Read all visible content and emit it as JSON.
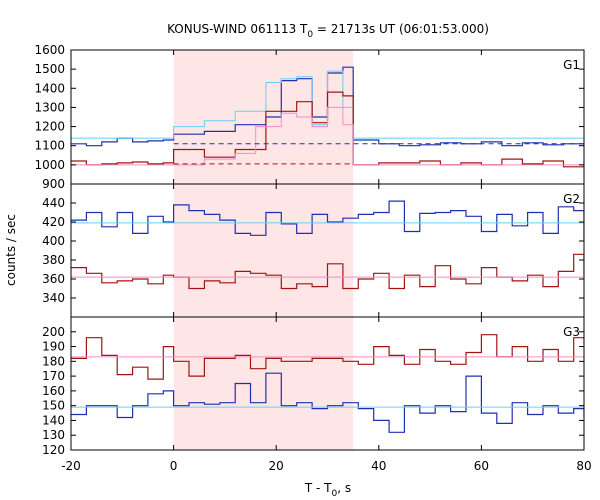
{
  "chart_data": {
    "type": "line",
    "title": "KONUS-WIND 061113 T",
    "title_sub": "0",
    "title_rest": " = 21713s UT (06:01:53.000)",
    "xlabel": "T - T",
    "xlabel_sub": "0",
    "xlabel_rest": ", s",
    "ylabel": "counts / sec",
    "xlim": [
      -20,
      80
    ],
    "xticks": [
      -20,
      0,
      20,
      40,
      60,
      80
    ],
    "shaded_region": {
      "x0": 0,
      "x1": 35,
      "color": "#ffe6e6"
    },
    "colors": {
      "dark_blue": "#1f2fb0",
      "dark_red": "#a01414",
      "cyan": "#66d0f0",
      "pink": "#f08cc8"
    },
    "panels": [
      {
        "name": "G1",
        "ylim": [
          900,
          1600
        ],
        "yticks": [
          900,
          1000,
          1100,
          1200,
          1300,
          1400,
          1500,
          1600
        ],
        "series": [
          {
            "color": "#1f2fb0",
            "width": 1.2,
            "style": "step",
            "x": [
              -20,
              -17,
              -14,
              -11,
              -8,
              -5,
              -2,
              0,
              6,
              12,
              18,
              21,
              24,
              27,
              30,
              33,
              35,
              40,
              44,
              48,
              52,
              56,
              60,
              64,
              68,
              72,
              76,
              80
            ],
            "y": [
              1110,
              1100,
              1120,
              1140,
              1120,
              1125,
              1130,
              1160,
              1175,
              1210,
              1250,
              1440,
              1450,
              1250,
              1480,
              1510,
              1130,
              1110,
              1100,
              1105,
              1115,
              1110,
              1120,
              1100,
              1115,
              1105,
              1110,
              1100
            ]
          },
          {
            "color": "#66d0f0",
            "width": 1.0,
            "style": "step",
            "x": [
              -20,
              0,
              6,
              12,
              18,
              21,
              24,
              27,
              30,
              33,
              35,
              80
            ],
            "y": [
              1140,
              1200,
              1230,
              1280,
              1430,
              1450,
              1460,
              1210,
              1490,
              1300,
              1140,
              1140
            ]
          },
          {
            "color": "#a01414",
            "width": 1.2,
            "style": "step",
            "x": [
              -20,
              -17,
              -14,
              -11,
              -8,
              -5,
              -2,
              0,
              6,
              12,
              18,
              21,
              24,
              27,
              30,
              33,
              35,
              40,
              44,
              48,
              52,
              56,
              60,
              64,
              68,
              72,
              76,
              80
            ],
            "y": [
              1020,
              1000,
              1005,
              1010,
              1015,
              1005,
              1010,
              1080,
              1040,
              1080,
              1280,
              1280,
              1330,
              1220,
              1380,
              1360,
              1000,
              1010,
              1010,
              1020,
              1000,
              1010,
              1000,
              1030,
              1005,
              1020,
              990,
              1020
            ]
          },
          {
            "color": "#f08cc8",
            "width": 1.0,
            "style": "step",
            "x": [
              -20,
              0,
              6,
              12,
              16,
              21,
              24,
              27,
              30,
              33,
              35,
              80
            ],
            "y": [
              1000,
              1000,
              1030,
              1060,
              1200,
              1270,
              1250,
              1200,
              1300,
              1210,
              1000,
              1000
            ]
          },
          {
            "color": "#1f2fb0",
            "width": 1.0,
            "style": "dashed",
            "x": [
              0,
              80
            ],
            "y": [
              1110,
              1110
            ]
          },
          {
            "color": "#a01414",
            "width": 1.0,
            "style": "dashed",
            "x": [
              0,
              35
            ],
            "y": [
              1005,
              1005
            ]
          }
        ]
      },
      {
        "name": "G2",
        "ylim": [
          320,
          460
        ],
        "yticks": [
          340,
          360,
          380,
          400,
          420,
          440
        ],
        "series": [
          {
            "color": "#1f2fb0",
            "width": 1.2,
            "style": "step",
            "x": [
              -20,
              -17,
              -14,
              -11,
              -8,
              -5,
              -2,
              0,
              3,
              6,
              9,
              12,
              15,
              18,
              21,
              24,
              27,
              30,
              33,
              36,
              39,
              42,
              45,
              48,
              51,
              54,
              57,
              60,
              63,
              66,
              69,
              72,
              75,
              78,
              80
            ],
            "y": [
              422,
              430,
              415,
              430,
              408,
              426,
              420,
              438,
              432,
              428,
              422,
              408,
              406,
              430,
              418,
              408,
              428,
              420,
              424,
              428,
              430,
              442,
              410,
              429,
              430,
              432,
              426,
              410,
              428,
              416,
              430,
              408,
              436,
              432,
              402
            ]
          },
          {
            "color": "#66d0f0",
            "width": 1.0,
            "style": "step",
            "x": [
              -20,
              80
            ],
            "y": [
              419,
              419
            ]
          },
          {
            "color": "#a01414",
            "width": 1.2,
            "style": "step",
            "x": [
              -20,
              -17,
              -14,
              -11,
              -8,
              -5,
              -2,
              0,
              3,
              6,
              9,
              12,
              15,
              18,
              21,
              24,
              27,
              30,
              33,
              36,
              39,
              42,
              45,
              48,
              51,
              54,
              57,
              60,
              63,
              66,
              69,
              72,
              75,
              78,
              80
            ],
            "y": [
              372,
              366,
              356,
              358,
              360,
              355,
              364,
              362,
              350,
              358,
              356,
              368,
              366,
              364,
              350,
              355,
              352,
              376,
              350,
              360,
              366,
              350,
              364,
              352,
              374,
              360,
              355,
              372,
              362,
              358,
              364,
              352,
              368,
              386,
              365
            ]
          },
          {
            "color": "#f08cc8",
            "width": 1.0,
            "style": "step",
            "x": [
              -20,
              80
            ],
            "y": [
              362,
              362
            ]
          }
        ]
      },
      {
        "name": "G3",
        "ylim": [
          120,
          210
        ],
        "yticks": [
          120,
          130,
          140,
          150,
          160,
          170,
          180,
          190,
          200
        ],
        "series": [
          {
            "color": "#a01414",
            "width": 1.2,
            "style": "step",
            "x": [
              -20,
              -17,
              -14,
              -11,
              -8,
              -5,
              -2,
              0,
              3,
              6,
              9,
              12,
              15,
              18,
              21,
              24,
              27,
              30,
              33,
              36,
              39,
              42,
              45,
              48,
              51,
              54,
              57,
              60,
              63,
              66,
              69,
              72,
              75,
              78,
              80
            ],
            "y": [
              182,
              196,
              184,
              171,
              176,
              168,
              190,
              180,
              170,
              182,
              182,
              184,
              175,
              182,
              180,
              180,
              182,
              182,
              180,
              178,
              190,
              184,
              178,
              188,
              180,
              178,
              186,
              198,
              183,
              190,
              180,
              188,
              180,
              196,
              192
            ]
          },
          {
            "color": "#f08cc8",
            "width": 1.0,
            "style": "step",
            "x": [
              -20,
              80
            ],
            "y": [
              183,
              183
            ]
          },
          {
            "color": "#1f2fb0",
            "width": 1.2,
            "style": "step",
            "x": [
              -20,
              -17,
              -14,
              -11,
              -8,
              -5,
              -2,
              0,
              3,
              6,
              9,
              12,
              15,
              18,
              21,
              24,
              27,
              30,
              33,
              36,
              39,
              42,
              45,
              48,
              51,
              54,
              57,
              60,
              63,
              66,
              69,
              72,
              75,
              78,
              80
            ],
            "y": [
              144,
              150,
              150,
              142,
              150,
              158,
              160,
              150,
              152,
              151,
              152,
              165,
              152,
              172,
              150,
              152,
              148,
              150,
              152,
              148,
              140,
              132,
              150,
              145,
              150,
              146,
              170,
              145,
              138,
              152,
              144,
              150,
              145,
              148,
              142
            ]
          },
          {
            "color": "#66d0f0",
            "width": 1.0,
            "style": "step",
            "x": [
              -20,
              80
            ],
            "y": [
              149,
              149
            ]
          }
        ]
      }
    ]
  }
}
